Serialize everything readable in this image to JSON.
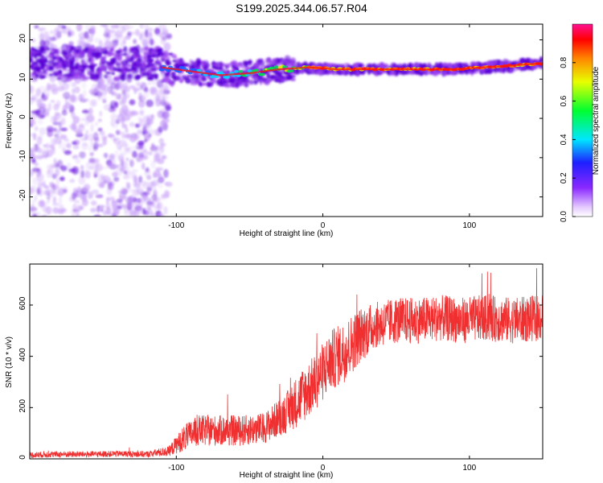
{
  "title": "S199.2025.344.06.57.R04",
  "colors": {
    "line": "#f03030",
    "axis": "#000000",
    "spec_dark": "#5a00d8",
    "spec_light": "#d8b8f8"
  },
  "chart_data": [
    {
      "type": "heatmap",
      "title": "",
      "xlabel": "Height of straight line (km)",
      "ylabel": "Frequency (Hz)",
      "xlim": [
        -200,
        150
      ],
      "ylim": [
        -25,
        24
      ],
      "xticks": [
        -100,
        0,
        100
      ],
      "xtick_labels": [
        "-100",
        "0",
        "100"
      ],
      "yticks": [
        -20,
        -10,
        0,
        10,
        20
      ],
      "ytick_labels": [
        "-20",
        "-10",
        "0",
        "10",
        "20"
      ],
      "ridge": {
        "description_points_x": [
          -110,
          -90,
          -70,
          -50,
          -30,
          -10,
          10,
          30,
          50,
          70,
          90,
          110,
          130,
          150
        ],
        "frequency_hz": [
          13,
          12,
          11,
          11.5,
          12.5,
          13,
          12.5,
          12.5,
          12.5,
          12.5,
          12.5,
          13,
          13.5,
          14
        ]
      },
      "colorbar": {
        "label": "Normalized spectral amplitude",
        "range": [
          0,
          1
        ],
        "ticks": [
          0,
          0.2,
          0.4,
          0.6,
          0.8
        ],
        "tick_labels": [
          "0.0",
          "0.2",
          "0.4",
          "0.6",
          "0.8"
        ]
      }
    },
    {
      "type": "line",
      "title": "",
      "xlabel": "Height of straight line (km)",
      "ylabel": "SNR (10 * v/v)",
      "xlim": [
        -200,
        150
      ],
      "ylim": [
        0,
        760
      ],
      "xticks": [
        -100,
        0,
        100
      ],
      "xtick_labels": [
        "-100",
        "0",
        "100"
      ],
      "yticks": [
        0,
        200,
        400,
        600
      ],
      "ytick_labels": [
        "0",
        "200",
        "400",
        "600"
      ],
      "series": [
        {
          "name": "SNR",
          "x": [
            -200,
            -180,
            -160,
            -140,
            -120,
            -105,
            -95,
            -85,
            -70,
            -55,
            -40,
            -25,
            -15,
            -5,
            5,
            15,
            25,
            35,
            50,
            65,
            80,
            95,
            110,
            130,
            150
          ],
          "mean": [
            15,
            18,
            18,
            20,
            18,
            30,
            80,
            110,
            110,
            110,
            120,
            180,
            240,
            300,
            380,
            420,
            480,
            520,
            540,
            540,
            550,
            540,
            550,
            540,
            550
          ],
          "noise": [
            12,
            12,
            12,
            12,
            12,
            20,
            50,
            60,
            60,
            60,
            60,
            80,
            110,
            110,
            120,
            120,
            110,
            90,
            90,
            90,
            90,
            90,
            90,
            90,
            90
          ]
        }
      ]
    }
  ]
}
